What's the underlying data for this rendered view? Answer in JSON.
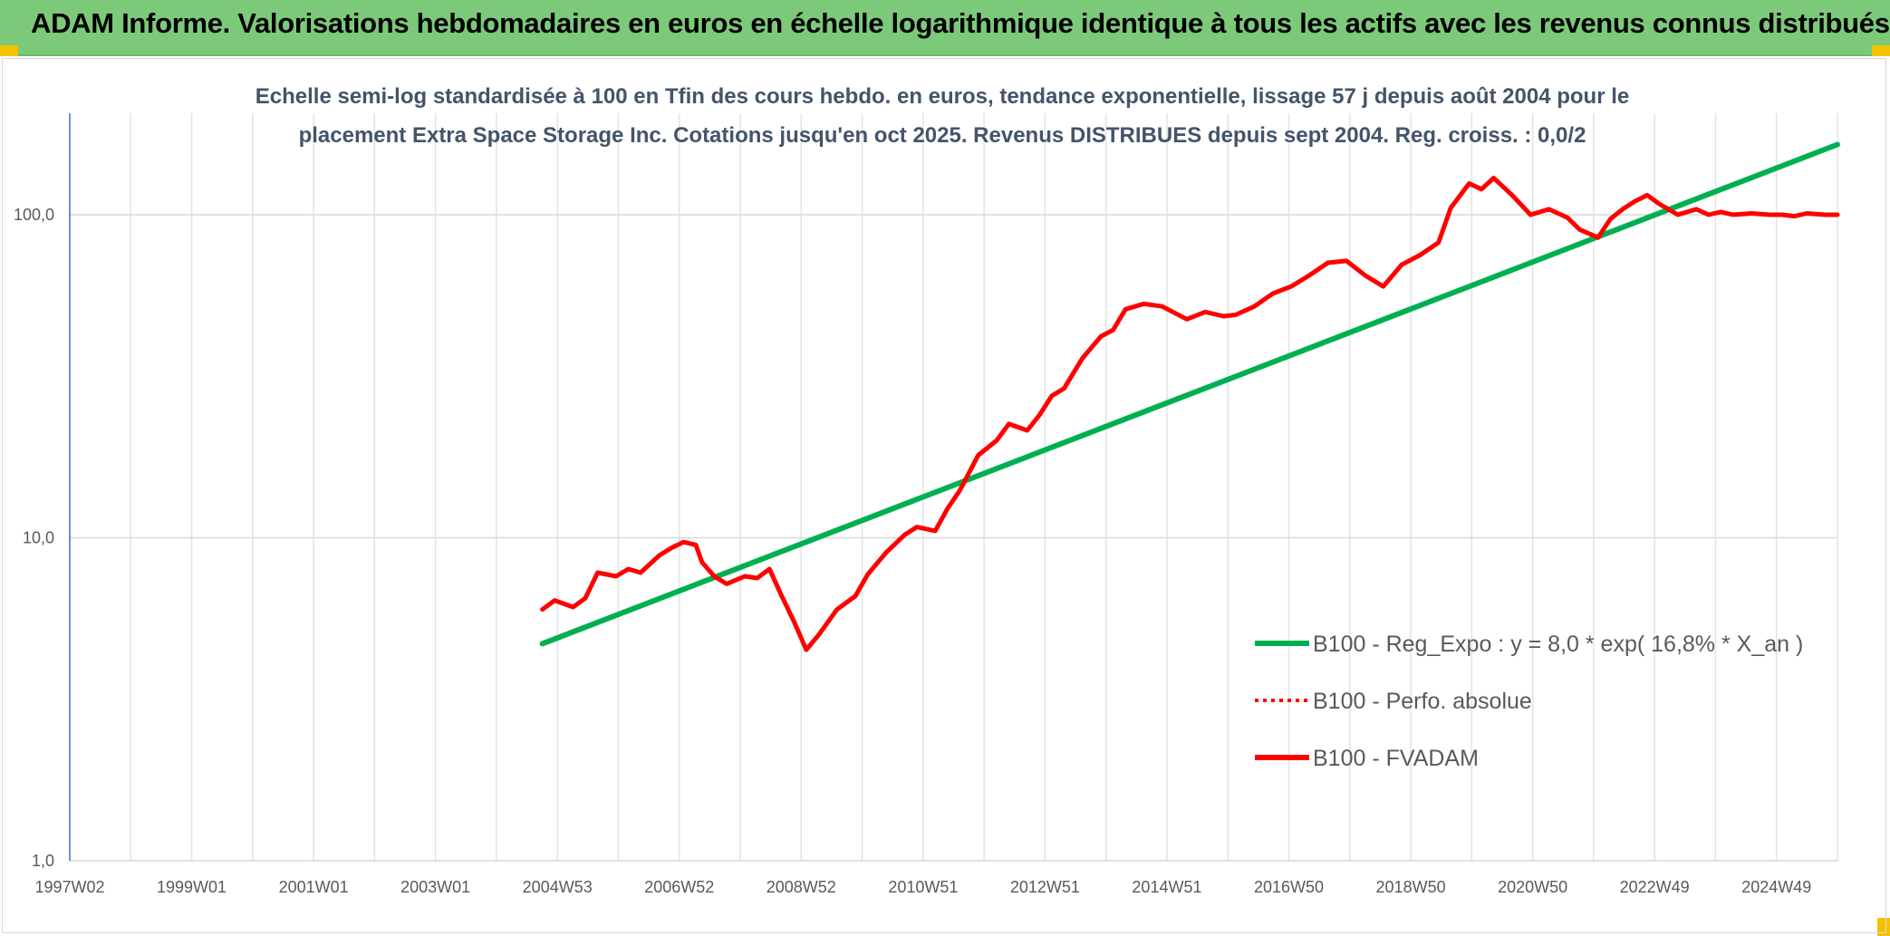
{
  "banner": {
    "title": "ADAM Informe. Valorisations hebdomadaires en euros en échelle logarithmique identique à tous les actifs avec les revenus connus distribués",
    "background": "#7dc97a"
  },
  "chart_data": {
    "type": "line",
    "title_line1": "Echelle semi-log standardisée à 100 en Tfin des cours hebdo. en euros, tendance exponentielle, lissage 57 j depuis août 2004 pour le",
    "title_line2": "placement Extra Space Storage Inc. Cotations jusqu'en oct 2025. Revenus DISTRIBUES depuis sept 2004. Reg. croiss. : 0,0/2",
    "y_scale": "log",
    "ylim": [
      1,
      180
    ],
    "y_ticks": [
      {
        "v": 1,
        "label": "1,0"
      },
      {
        "v": 10,
        "label": "10,0"
      },
      {
        "v": 100,
        "label": "100,0"
      }
    ],
    "x_ticks": [
      "1997W02",
      "1999W01",
      "2001W01",
      "2003W01",
      "2004W53",
      "2006W52",
      "2008W52",
      "2010W51",
      "2012W51",
      "2014W51",
      "2016W50",
      "2018W50",
      "2020W50",
      "2022W49",
      "2024W49"
    ],
    "x_range": [
      1997.0,
      2025.8
    ],
    "grid": true,
    "legend_position": "bottom-right",
    "series": [
      {
        "name": "B100 - Reg_Expo : y = 8,0 * exp( 16,8% * X_an )",
        "color": "#00b050",
        "style": "solid",
        "x": [
          2004.7,
          2025.8
        ],
        "y": [
          4.7,
          165
        ]
      },
      {
        "name": "B100 - Perfo. absolue",
        "color": "#ff0000",
        "style": "dotted",
        "x": [],
        "y": []
      },
      {
        "name": "B100 - FVADAM",
        "color": "#ff0000",
        "style": "solid",
        "x": [
          2004.7,
          2004.9,
          2005.2,
          2005.4,
          2005.6,
          2005.9,
          2006.1,
          2006.3,
          2006.6,
          2006.8,
          2007.0,
          2007.2,
          2007.3,
          2007.5,
          2007.7,
          2008.0,
          2008.2,
          2008.4,
          2008.6,
          2008.8,
          2009.0,
          2009.2,
          2009.5,
          2009.8,
          2010.0,
          2010.3,
          2010.6,
          2010.8,
          2011.1,
          2011.3,
          2011.5,
          2011.8,
          2012.1,
          2012.3,
          2012.6,
          2012.8,
          2013.0,
          2013.2,
          2013.5,
          2013.8,
          2014.0,
          2014.2,
          2014.5,
          2014.8,
          2015.2,
          2015.5,
          2015.8,
          2016.0,
          2016.3,
          2016.6,
          2016.9,
          2017.2,
          2017.5,
          2017.8,
          2018.1,
          2018.4,
          2018.7,
          2019.0,
          2019.3,
          2019.5,
          2019.8,
          2020.0,
          2020.2,
          2020.5,
          2020.8,
          2021.1,
          2021.4,
          2021.6,
          2021.9,
          2022.1,
          2022.3,
          2022.5,
          2022.7,
          2022.9,
          2023.2,
          2023.5,
          2023.7,
          2023.9,
          2024.1,
          2024.4,
          2024.7,
          2024.9,
          2025.1,
          2025.3,
          2025.6,
          2025.8
        ],
        "y": [
          6.0,
          6.4,
          6.1,
          6.5,
          7.8,
          7.6,
          8.0,
          7.8,
          8.8,
          9.3,
          9.7,
          9.5,
          8.4,
          7.6,
          7.2,
          7.6,
          7.5,
          8.0,
          6.6,
          5.5,
          4.5,
          5.0,
          6.0,
          6.6,
          7.7,
          9.0,
          10.2,
          10.8,
          10.5,
          12.3,
          14.0,
          18.0,
          20.0,
          22.5,
          21.5,
          24.0,
          27.5,
          29.0,
          36.0,
          42.0,
          44.0,
          51.0,
          53.0,
          52.0,
          47.5,
          50.0,
          48.5,
          49.0,
          52.0,
          57.0,
          60.0,
          65.0,
          71.0,
          72.0,
          65.0,
          60.0,
          70.0,
          75.0,
          82.0,
          105.0,
          125.0,
          120.0,
          130.0,
          115.0,
          100.0,
          104.0,
          98.0,
          90.0,
          85.0,
          97.0,
          104.0,
          110.0,
          115.0,
          108.0,
          100.0,
          104.0,
          100.0,
          102.0,
          100.0,
          101.0,
          100.0,
          100.0,
          99.0,
          101.0,
          100.0,
          100.0
        ]
      }
    ]
  }
}
